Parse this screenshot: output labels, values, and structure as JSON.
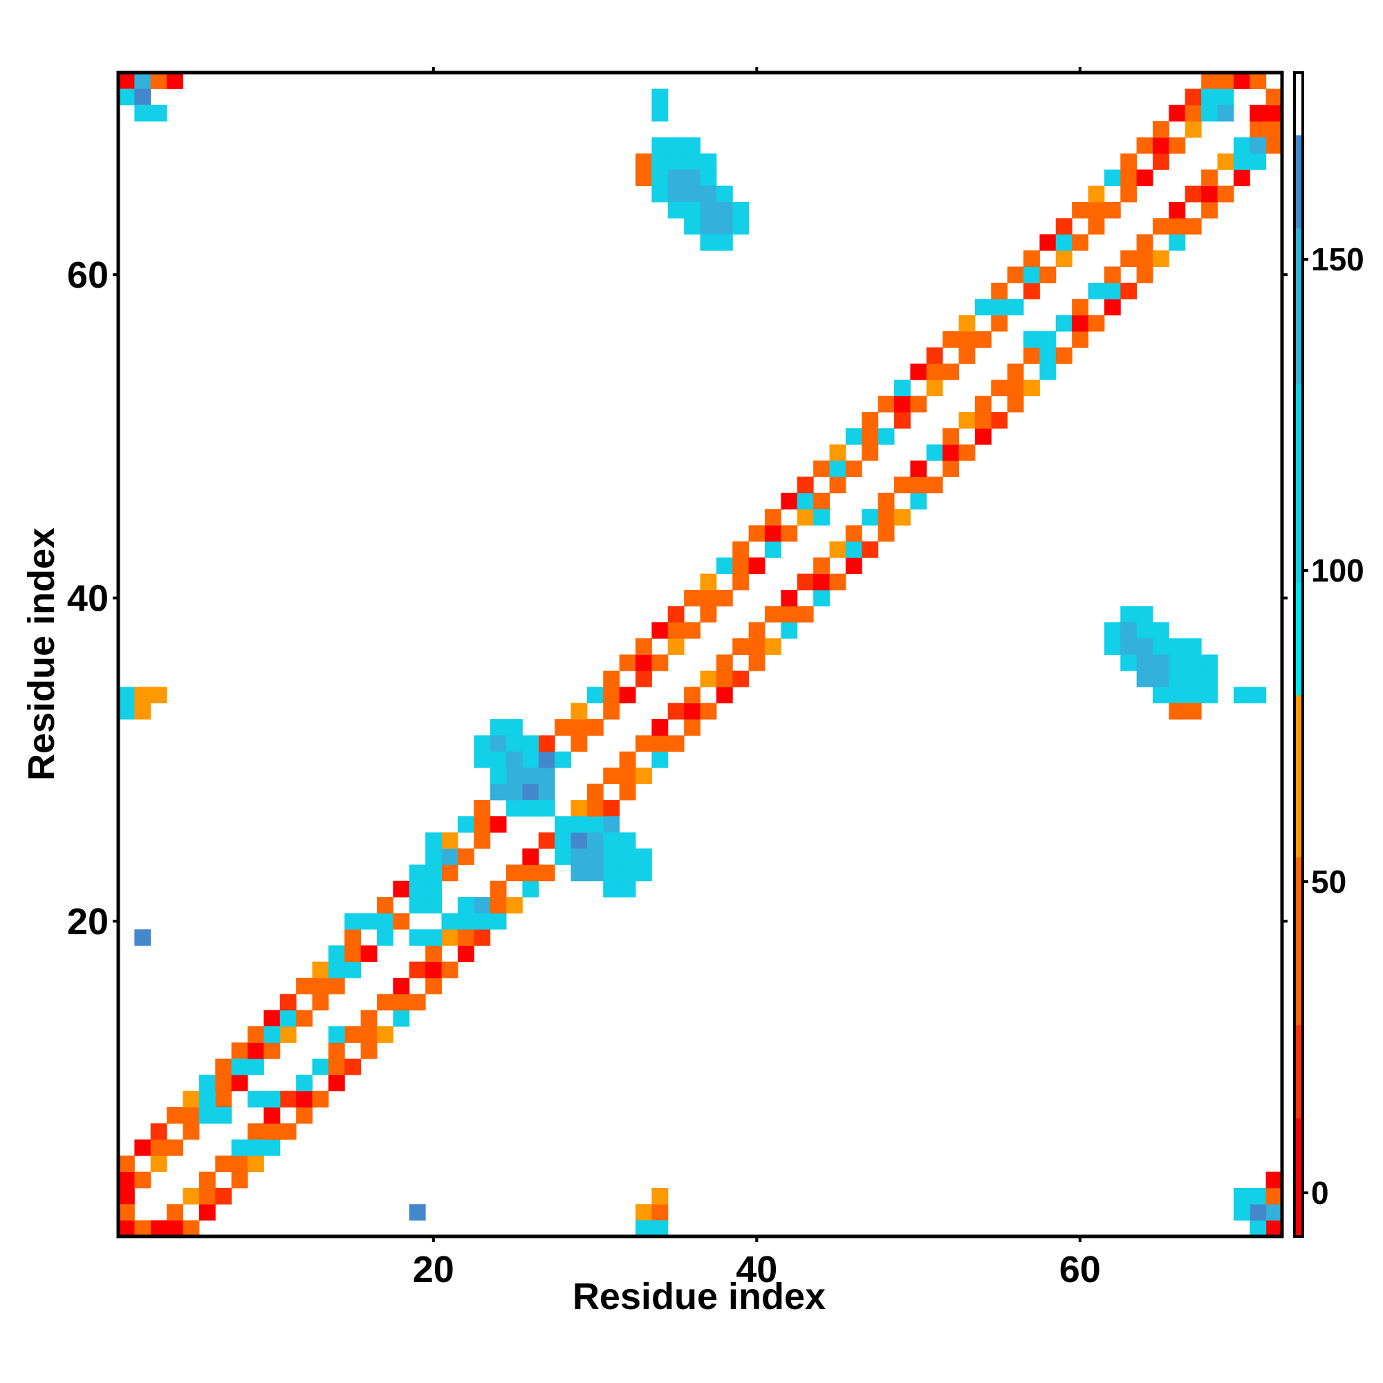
{
  "chart_data": {
    "type": "heatmap",
    "title": "",
    "xlabel": "Residue index",
    "ylabel": "Residue index",
    "xlim": [
      0.5,
      72.5
    ],
    "ylim": [
      0.5,
      72.5
    ],
    "n_residues": 72,
    "x_ticks": [
      20,
      40,
      60
    ],
    "y_ticks": [
      20,
      40,
      60
    ],
    "colorbar": {
      "range": [
        -7,
        180
      ],
      "ticks": [
        0,
        50,
        100,
        150
      ],
      "stops": [
        {
          "from": -7,
          "to": 12,
          "color": "#ff0000"
        },
        {
          "from": 12,
          "to": 27,
          "color": "#ff3300"
        },
        {
          "from": 27,
          "to": 54,
          "color": "#ff6600"
        },
        {
          "from": 54,
          "to": 80,
          "color": "#ff9900"
        },
        {
          "from": 80,
          "to": 98,
          "color": "#00e5ee"
        },
        {
          "from": 98,
          "to": 130,
          "color": "#11d0e8"
        },
        {
          "from": 130,
          "to": 155,
          "color": "#33b0dc"
        },
        {
          "from": 155,
          "to": 170,
          "color": "#4488cc"
        },
        {
          "from": 170,
          "to": 180,
          "color": "#ffffff"
        }
      ]
    },
    "near_diagonal_value": 45,
    "cells": [
      {
        "x": 1,
        "y": 72,
        "v": 5
      },
      {
        "x": 2,
        "y": 72,
        "v": 150
      },
      {
        "x": 3,
        "y": 72,
        "v": 35
      },
      {
        "x": 4,
        "y": 72,
        "v": 5
      },
      {
        "x": 1,
        "y": 71,
        "v": 120
      },
      {
        "x": 2,
        "y": 71,
        "v": 160
      },
      {
        "x": 2,
        "y": 70,
        "v": 125
      },
      {
        "x": 3,
        "y": 70,
        "v": 125
      },
      {
        "x": 1,
        "y": 1,
        "v": 5
      },
      {
        "x": 2,
        "y": 1,
        "v": 40
      },
      {
        "x": 3,
        "y": 1,
        "v": 5
      },
      {
        "x": 1,
        "y": 2,
        "v": 40
      },
      {
        "x": 1,
        "y": 3,
        "v": 5
      },
      {
        "x": 72,
        "y": 1,
        "v": 5
      },
      {
        "x": 71,
        "y": 1,
        "v": 120
      },
      {
        "x": 72,
        "y": 2,
        "v": 140
      },
      {
        "x": 71,
        "y": 2,
        "v": 165
      },
      {
        "x": 70,
        "y": 2,
        "v": 120
      },
      {
        "x": 70,
        "y": 3,
        "v": 120
      },
      {
        "x": 71,
        "y": 3,
        "v": 120
      },
      {
        "x": 72,
        "y": 3,
        "v": 35
      },
      {
        "x": 72,
        "y": 4,
        "v": 5
      },
      {
        "x": 70,
        "y": 72,
        "v": 5
      },
      {
        "x": 71,
        "y": 72,
        "v": 40
      },
      {
        "x": 72,
        "y": 71,
        "v": 40
      },
      {
        "x": 71,
        "y": 70,
        "v": 5
      },
      {
        "x": 72,
        "y": 70,
        "v": 5
      },
      {
        "x": 68,
        "y": 71,
        "v": 125
      },
      {
        "x": 69,
        "y": 71,
        "v": 125
      },
      {
        "x": 68,
        "y": 70,
        "v": 125
      },
      {
        "x": 69,
        "y": 70,
        "v": 145
      },
      {
        "x": 70,
        "y": 68,
        "v": 125
      },
      {
        "x": 71,
        "y": 68,
        "v": 140
      },
      {
        "x": 70,
        "y": 67,
        "v": 120
      },
      {
        "x": 71,
        "y": 67,
        "v": 120
      },
      {
        "x": 34,
        "y": 71,
        "v": 115
      },
      {
        "x": 34,
        "y": 70,
        "v": 115
      },
      {
        "x": 34,
        "y": 68,
        "v": 120
      },
      {
        "x": 35,
        "y": 68,
        "v": 120
      },
      {
        "x": 36,
        "y": 68,
        "v": 120
      },
      {
        "x": 33,
        "y": 67,
        "v": 40
      },
      {
        "x": 34,
        "y": 67,
        "v": 125
      },
      {
        "x": 35,
        "y": 67,
        "v": 125
      },
      {
        "x": 36,
        "y": 67,
        "v": 125
      },
      {
        "x": 37,
        "y": 67,
        "v": 120
      },
      {
        "x": 33,
        "y": 66,
        "v": 40
      },
      {
        "x": 34,
        "y": 66,
        "v": 120
      },
      {
        "x": 35,
        "y": 66,
        "v": 140
      },
      {
        "x": 36,
        "y": 66,
        "v": 140
      },
      {
        "x": 37,
        "y": 66,
        "v": 125
      },
      {
        "x": 34,
        "y": 65,
        "v": 120
      },
      {
        "x": 35,
        "y": 65,
        "v": 140
      },
      {
        "x": 36,
        "y": 65,
        "v": 140
      },
      {
        "x": 37,
        "y": 65,
        "v": 140
      },
      {
        "x": 38,
        "y": 65,
        "v": 120
      },
      {
        "x": 35,
        "y": 64,
        "v": 125
      },
      {
        "x": 36,
        "y": 64,
        "v": 125
      },
      {
        "x": 37,
        "y": 64,
        "v": 140
      },
      {
        "x": 38,
        "y": 64,
        "v": 140
      },
      {
        "x": 39,
        "y": 64,
        "v": 125
      },
      {
        "x": 36,
        "y": 63,
        "v": 125
      },
      {
        "x": 37,
        "y": 63,
        "v": 140
      },
      {
        "x": 38,
        "y": 63,
        "v": 140
      },
      {
        "x": 39,
        "y": 63,
        "v": 125
      },
      {
        "x": 37,
        "y": 62,
        "v": 120
      },
      {
        "x": 38,
        "y": 62,
        "v": 120
      },
      {
        "x": 63,
        "y": 39,
        "v": 125
      },
      {
        "x": 64,
        "y": 39,
        "v": 125
      },
      {
        "x": 62,
        "y": 38,
        "v": 120
      },
      {
        "x": 63,
        "y": 38,
        "v": 140
      },
      {
        "x": 64,
        "y": 38,
        "v": 125
      },
      {
        "x": 65,
        "y": 38,
        "v": 125
      },
      {
        "x": 62,
        "y": 37,
        "v": 120
      },
      {
        "x": 63,
        "y": 37,
        "v": 140
      },
      {
        "x": 64,
        "y": 37,
        "v": 140
      },
      {
        "x": 65,
        "y": 37,
        "v": 125
      },
      {
        "x": 66,
        "y": 37,
        "v": 120
      },
      {
        "x": 67,
        "y": 37,
        "v": 120
      },
      {
        "x": 63,
        "y": 36,
        "v": 125
      },
      {
        "x": 64,
        "y": 36,
        "v": 140
      },
      {
        "x": 65,
        "y": 36,
        "v": 140
      },
      {
        "x": 66,
        "y": 36,
        "v": 125
      },
      {
        "x": 67,
        "y": 36,
        "v": 120
      },
      {
        "x": 68,
        "y": 36,
        "v": 120
      },
      {
        "x": 64,
        "y": 35,
        "v": 140
      },
      {
        "x": 65,
        "y": 35,
        "v": 140
      },
      {
        "x": 66,
        "y": 35,
        "v": 125
      },
      {
        "x": 67,
        "y": 35,
        "v": 125
      },
      {
        "x": 68,
        "y": 35,
        "v": 120
      },
      {
        "x": 65,
        "y": 34,
        "v": 125
      },
      {
        "x": 66,
        "y": 34,
        "v": 125
      },
      {
        "x": 67,
        "y": 34,
        "v": 120
      },
      {
        "x": 68,
        "y": 34,
        "v": 120
      },
      {
        "x": 70,
        "y": 34,
        "v": 120
      },
      {
        "x": 71,
        "y": 34,
        "v": 120
      },
      {
        "x": 66,
        "y": 33,
        "v": 40
      },
      {
        "x": 67,
        "y": 33,
        "v": 40
      },
      {
        "x": 1,
        "y": 34,
        "v": 120
      },
      {
        "x": 2,
        "y": 34,
        "v": 60
      },
      {
        "x": 3,
        "y": 34,
        "v": 60
      },
      {
        "x": 1,
        "y": 33,
        "v": 120
      },
      {
        "x": 2,
        "y": 33,
        "v": 60
      },
      {
        "x": 33,
        "y": 2,
        "v": 60
      },
      {
        "x": 34,
        "y": 2,
        "v": 40
      },
      {
        "x": 34,
        "y": 3,
        "v": 60
      },
      {
        "x": 33,
        "y": 1,
        "v": 115
      },
      {
        "x": 34,
        "y": 1,
        "v": 115
      },
      {
        "x": 2,
        "y": 19,
        "v": 160
      },
      {
        "x": 19,
        "y": 2,
        "v": 160
      },
      {
        "x": 24,
        "y": 32,
        "v": 125
      },
      {
        "x": 25,
        "y": 32,
        "v": 125
      },
      {
        "x": 23,
        "y": 31,
        "v": 110
      },
      {
        "x": 24,
        "y": 31,
        "v": 140
      },
      {
        "x": 25,
        "y": 31,
        "v": 125
      },
      {
        "x": 26,
        "y": 31,
        "v": 120
      },
      {
        "x": 23,
        "y": 30,
        "v": 110
      },
      {
        "x": 24,
        "y": 30,
        "v": 125
      },
      {
        "x": 25,
        "y": 30,
        "v": 140
      },
      {
        "x": 26,
        "y": 30,
        "v": 125
      },
      {
        "x": 27,
        "y": 30,
        "v": 160
      },
      {
        "x": 28,
        "y": 30,
        "v": 125
      },
      {
        "x": 24,
        "y": 29,
        "v": 125
      },
      {
        "x": 25,
        "y": 29,
        "v": 140
      },
      {
        "x": 26,
        "y": 29,
        "v": 150
      },
      {
        "x": 27,
        "y": 29,
        "v": 140
      },
      {
        "x": 24,
        "y": 28,
        "v": 140
      },
      {
        "x": 25,
        "y": 28,
        "v": 140
      },
      {
        "x": 26,
        "y": 28,
        "v": 160
      },
      {
        "x": 27,
        "y": 28,
        "v": 140
      },
      {
        "x": 25,
        "y": 27,
        "v": 125
      },
      {
        "x": 26,
        "y": 27,
        "v": 125
      },
      {
        "x": 27,
        "y": 27,
        "v": 125
      },
      {
        "x": 28,
        "y": 26,
        "v": 125
      },
      {
        "x": 29,
        "y": 26,
        "v": 125
      },
      {
        "x": 30,
        "y": 26,
        "v": 125
      },
      {
        "x": 31,
        "y": 26,
        "v": 150
      },
      {
        "x": 28,
        "y": 25,
        "v": 125
      },
      {
        "x": 29,
        "y": 25,
        "v": 160
      },
      {
        "x": 30,
        "y": 25,
        "v": 140
      },
      {
        "x": 31,
        "y": 25,
        "v": 125
      },
      {
        "x": 32,
        "y": 25,
        "v": 120
      },
      {
        "x": 28,
        "y": 24,
        "v": 120
      },
      {
        "x": 29,
        "y": 24,
        "v": 140
      },
      {
        "x": 30,
        "y": 24,
        "v": 140
      },
      {
        "x": 31,
        "y": 24,
        "v": 125
      },
      {
        "x": 32,
        "y": 24,
        "v": 125
      },
      {
        "x": 33,
        "y": 24,
        "v": 125
      },
      {
        "x": 29,
        "y": 23,
        "v": 140
      },
      {
        "x": 30,
        "y": 23,
        "v": 140
      },
      {
        "x": 31,
        "y": 23,
        "v": 125
      },
      {
        "x": 32,
        "y": 23,
        "v": 125
      },
      {
        "x": 33,
        "y": 23,
        "v": 125
      },
      {
        "x": 31,
        "y": 22,
        "v": 120
      },
      {
        "x": 32,
        "y": 22,
        "v": 110
      },
      {
        "x": 20,
        "y": 25,
        "v": 115
      },
      {
        "x": 20,
        "y": 24,
        "v": 120
      },
      {
        "x": 21,
        "y": 24,
        "v": 150
      },
      {
        "x": 19,
        "y": 23,
        "v": 125
      },
      {
        "x": 20,
        "y": 23,
        "v": 125
      },
      {
        "x": 19,
        "y": 22,
        "v": 120
      },
      {
        "x": 20,
        "y": 22,
        "v": 125
      },
      {
        "x": 19,
        "y": 21,
        "v": 120
      },
      {
        "x": 20,
        "y": 21,
        "v": 120
      },
      {
        "x": 22,
        "y": 21,
        "v": 120
      },
      {
        "x": 23,
        "y": 21,
        "v": 145
      },
      {
        "x": 21,
        "y": 20,
        "v": 125
      },
      {
        "x": 22,
        "y": 20,
        "v": 125
      },
      {
        "x": 23,
        "y": 20,
        "v": 115
      },
      {
        "x": 24,
        "y": 20,
        "v": 115
      },
      {
        "x": 16,
        "y": 20,
        "v": 120
      },
      {
        "x": 17,
        "y": 20,
        "v": 125
      },
      {
        "x": 15,
        "y": 20,
        "v": 110
      },
      {
        "x": 17,
        "y": 19,
        "v": 120
      },
      {
        "x": 19,
        "y": 19,
        "v": 125
      },
      {
        "x": 20,
        "y": 19,
        "v": 125
      },
      {
        "x": 14,
        "y": 17,
        "v": 125
      },
      {
        "x": 15,
        "y": 17,
        "v": 125
      },
      {
        "x": 11,
        "y": 14,
        "v": 125
      },
      {
        "x": 10,
        "y": 13,
        "v": 110
      },
      {
        "x": 14,
        "y": 13,
        "v": 125
      },
      {
        "x": 8,
        "y": 11,
        "v": 110
      },
      {
        "x": 9,
        "y": 11,
        "v": 110
      },
      {
        "x": 6,
        "y": 8,
        "v": 120
      },
      {
        "x": 6,
        "y": 9,
        "v": 110
      },
      {
        "x": 7,
        "y": 8,
        "v": 110
      },
      {
        "x": 8,
        "y": 6,
        "v": 110
      },
      {
        "x": 9,
        "y": 6,
        "v": 110
      },
      {
        "x": 9,
        "y": 9,
        "v": 120
      },
      {
        "x": 10,
        "y": 9,
        "v": 110
      },
      {
        "x": 12,
        "y": 10,
        "v": 110
      },
      {
        "x": 13,
        "y": 11,
        "v": 125
      },
      {
        "x": 59,
        "y": 62,
        "v": 120
      },
      {
        "x": 57,
        "y": 60,
        "v": 115
      },
      {
        "x": 55,
        "y": 58,
        "v": 120
      },
      {
        "x": 56,
        "y": 58,
        "v": 115
      },
      {
        "x": 61,
        "y": 59,
        "v": 120
      },
      {
        "x": 62,
        "y": 59,
        "v": 115
      },
      {
        "x": 59,
        "y": 57,
        "v": 115
      },
      {
        "x": 57,
        "y": 56,
        "v": 110
      },
      {
        "x": 58,
        "y": 56,
        "v": 110
      },
      {
        "x": 58,
        "y": 55,
        "v": 115
      },
      {
        "x": 49,
        "y": 53,
        "v": 110
      },
      {
        "x": 48,
        "y": 50,
        "v": 115
      },
      {
        "x": 51,
        "y": 49,
        "v": 120
      },
      {
        "x": 45,
        "y": 48,
        "v": 120
      },
      {
        "x": 44,
        "y": 45,
        "v": 120
      },
      {
        "x": 43,
        "y": 46,
        "v": 125
      },
      {
        "x": 41,
        "y": 43,
        "v": 120
      },
      {
        "x": 47,
        "y": 45,
        "v": 110
      },
      {
        "x": 46,
        "y": 43,
        "v": 120
      },
      {
        "x": 44,
        "y": 40,
        "v": 110
      }
    ]
  }
}
